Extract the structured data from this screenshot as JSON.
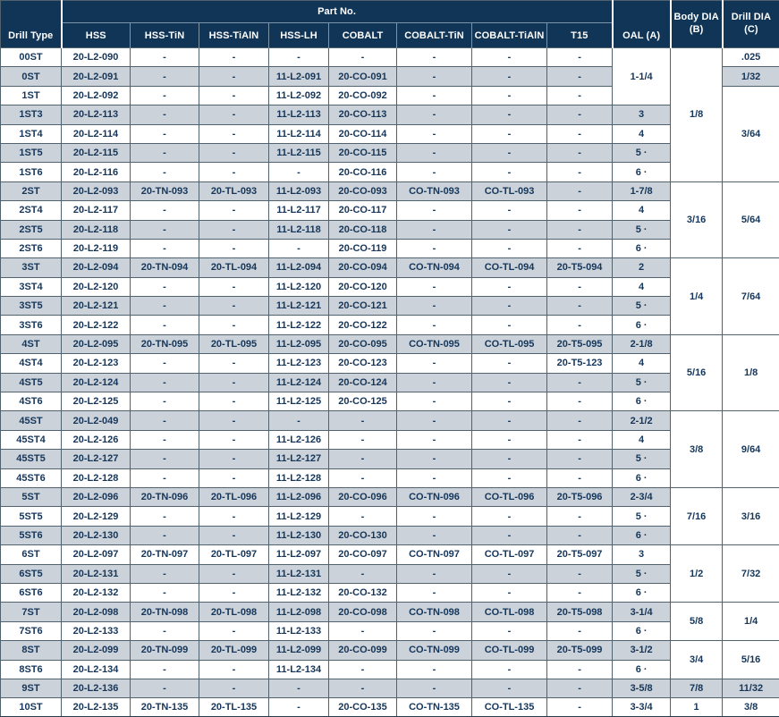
{
  "header": {
    "drill_type": "Drill Type",
    "part_no": "Part No.",
    "part_columns": [
      "HSS",
      "HSS-TiN",
      "HSS-TiAlN",
      "HSS-LH",
      "COBALT",
      "COBALT-TiN",
      "COBALT-TiAlN",
      "T15"
    ],
    "oal": "OAL (A)",
    "body_dia_line1": "Body DIA",
    "body_dia_line2": "(B)",
    "drill_dia_line1": "Drill DIA",
    "drill_dia_line2": "(C)"
  },
  "colors": {
    "header_bg": "#113557",
    "stripe_bg": "#cbd2d9",
    "text": "#15365a",
    "grid_line": "#51626f"
  },
  "rows": [
    {
      "type": "00ST",
      "parts": [
        "20-L2-090",
        "-",
        "-",
        "-",
        "-",
        "-",
        "-",
        "-"
      ],
      "oal": {
        "text": "1-1/4",
        "span": 3
      },
      "body": {
        "text": "1/8",
        "span": 7
      },
      "drill": {
        "text": ".025",
        "span": 1
      }
    },
    {
      "type": "0ST",
      "parts": [
        "20-L2-091",
        "-",
        "-",
        "11-L2-091",
        "20-CO-091",
        "-",
        "-",
        "-"
      ],
      "drill": {
        "text": "1/32",
        "span": 1
      }
    },
    {
      "type": "1ST",
      "parts": [
        "20-L2-092",
        "-",
        "-",
        "11-L2-092",
        "20-CO-092",
        "-",
        "-",
        "-"
      ],
      "drill": {
        "text": "3/64",
        "span": 5
      }
    },
    {
      "type": "1ST3",
      "parts": [
        "20-L2-113",
        "-",
        "-",
        "11-L2-113",
        "20-CO-113",
        "-",
        "-",
        "-"
      ],
      "oal": {
        "text": "3",
        "span": 1
      }
    },
    {
      "type": "1ST4",
      "parts": [
        "20-L2-114",
        "-",
        "-",
        "11-L2-114",
        "20-CO-114",
        "-",
        "-",
        "-"
      ],
      "oal": {
        "text": "4",
        "span": 1
      }
    },
    {
      "type": "1ST5",
      "parts": [
        "20-L2-115",
        "-",
        "-",
        "11-L2-115",
        "20-CO-115",
        "-",
        "-",
        "-"
      ],
      "oal": {
        "text": "5 ·",
        "span": 1
      }
    },
    {
      "type": "1ST6",
      "parts": [
        "20-L2-116",
        "-",
        "-",
        "-",
        "20-CO-116",
        "-",
        "-",
        "-"
      ],
      "oal": {
        "text": "6 ·",
        "span": 1
      }
    },
    {
      "type": "2ST",
      "parts": [
        "20-L2-093",
        "20-TN-093",
        "20-TL-093",
        "11-L2-093",
        "20-CO-093",
        "CO-TN-093",
        "CO-TL-093",
        "-"
      ],
      "oal": {
        "text": "1-7/8",
        "span": 1
      },
      "body": {
        "text": "3/16",
        "span": 4
      },
      "drill": {
        "text": "5/64",
        "span": 4
      }
    },
    {
      "type": "2ST4",
      "parts": [
        "20-L2-117",
        "-",
        "-",
        "11-L2-117",
        "20-CO-117",
        "-",
        "-",
        "-"
      ],
      "oal": {
        "text": "4",
        "span": 1
      }
    },
    {
      "type": "2ST5",
      "parts": [
        "20-L2-118",
        "-",
        "-",
        "11-L2-118",
        "20-CO-118",
        "-",
        "-",
        "-"
      ],
      "oal": {
        "text": "5 ·",
        "span": 1
      }
    },
    {
      "type": "2ST6",
      "parts": [
        "20-L2-119",
        "-",
        "-",
        "-",
        "20-CO-119",
        "-",
        "-",
        "-"
      ],
      "oal": {
        "text": "6 ·",
        "span": 1
      }
    },
    {
      "type": "3ST",
      "parts": [
        "20-L2-094",
        "20-TN-094",
        "20-TL-094",
        "11-L2-094",
        "20-CO-094",
        "CO-TN-094",
        "CO-TL-094",
        "20-T5-094"
      ],
      "oal": {
        "text": "2",
        "span": 1
      },
      "body": {
        "text": "1/4",
        "span": 4
      },
      "drill": {
        "text": "7/64",
        "span": 4
      }
    },
    {
      "type": "3ST4",
      "parts": [
        "20-L2-120",
        "-",
        "-",
        "11-L2-120",
        "20-CO-120",
        "-",
        "-",
        "-"
      ],
      "oal": {
        "text": "4",
        "span": 1
      }
    },
    {
      "type": "3ST5",
      "parts": [
        "20-L2-121",
        "-",
        "-",
        "11-L2-121",
        "20-CO-121",
        "-",
        "-",
        "-"
      ],
      "oal": {
        "text": "5 ·",
        "span": 1
      }
    },
    {
      "type": "3ST6",
      "parts": [
        "20-L2-122",
        "-",
        "-",
        "11-L2-122",
        "20-CO-122",
        "-",
        "-",
        "-"
      ],
      "oal": {
        "text": "6 ·",
        "span": 1
      }
    },
    {
      "type": "4ST",
      "parts": [
        "20-L2-095",
        "20-TN-095",
        "20-TL-095",
        "11-L2-095",
        "20-CO-095",
        "CO-TN-095",
        "CO-TL-095",
        "20-T5-095"
      ],
      "oal": {
        "text": "2-1/8",
        "span": 1
      },
      "body": {
        "text": "5/16",
        "span": 4
      },
      "drill": {
        "text": "1/8",
        "span": 4
      }
    },
    {
      "type": "4ST4",
      "parts": [
        "20-L2-123",
        "-",
        "-",
        "11-L2-123",
        "20-CO-123",
        "-",
        "-",
        "20-T5-123"
      ],
      "oal": {
        "text": "4",
        "span": 1
      }
    },
    {
      "type": "4ST5",
      "parts": [
        "20-L2-124",
        "-",
        "-",
        "11-L2-124",
        "20-CO-124",
        "-",
        "-",
        "-"
      ],
      "oal": {
        "text": "5 ·",
        "span": 1
      }
    },
    {
      "type": "4ST6",
      "parts": [
        "20-L2-125",
        "-",
        "-",
        "11-L2-125",
        "20-CO-125",
        "-",
        "-",
        "-"
      ],
      "oal": {
        "text": "6 ·",
        "span": 1
      }
    },
    {
      "type": "45ST",
      "parts": [
        "20-L2-049",
        "-",
        "-",
        "-",
        "-",
        "-",
        "-",
        "-"
      ],
      "oal": {
        "text": "2-1/2",
        "span": 1
      },
      "body": {
        "text": "3/8",
        "span": 4
      },
      "drill": {
        "text": "9/64",
        "span": 4
      }
    },
    {
      "type": "45ST4",
      "parts": [
        "20-L2-126",
        "-",
        "-",
        "11-L2-126",
        "-",
        "-",
        "-",
        "-"
      ],
      "oal": {
        "text": "4",
        "span": 1
      }
    },
    {
      "type": "45ST5",
      "parts": [
        "20-L2-127",
        "-",
        "-",
        "11-L2-127",
        "-",
        "-",
        "-",
        "-"
      ],
      "oal": {
        "text": "5 ·",
        "span": 1
      }
    },
    {
      "type": "45ST6",
      "parts": [
        "20-L2-128",
        "-",
        "-",
        "11-L2-128",
        "-",
        "-",
        "-",
        "-"
      ],
      "oal": {
        "text": "6 ·",
        "span": 1
      }
    },
    {
      "type": "5ST",
      "parts": [
        "20-L2-096",
        "20-TN-096",
        "20-TL-096",
        "11-L2-096",
        "20-CO-096",
        "CO-TN-096",
        "CO-TL-096",
        "20-T5-096"
      ],
      "oal": {
        "text": "2-3/4",
        "span": 1
      },
      "body": {
        "text": "7/16",
        "span": 3
      },
      "drill": {
        "text": "3/16",
        "span": 3
      }
    },
    {
      "type": "5ST5",
      "parts": [
        "20-L2-129",
        "-",
        "-",
        "11-L2-129",
        "-",
        "-",
        "-",
        "-"
      ],
      "oal": {
        "text": "5 ·",
        "span": 1
      }
    },
    {
      "type": "5ST6",
      "parts": [
        "20-L2-130",
        "-",
        "-",
        "11-L2-130",
        "20-CO-130",
        "-",
        "-",
        "-"
      ],
      "oal": {
        "text": "6 ·",
        "span": 1
      }
    },
    {
      "type": "6ST",
      "parts": [
        "20-L2-097",
        "20-TN-097",
        "20-TL-097",
        "11-L2-097",
        "20-CO-097",
        "CO-TN-097",
        "CO-TL-097",
        "20-T5-097"
      ],
      "oal": {
        "text": "3",
        "span": 1
      },
      "body": {
        "text": "1/2",
        "span": 3
      },
      "drill": {
        "text": "7/32",
        "span": 3
      }
    },
    {
      "type": "6ST5",
      "parts": [
        "20-L2-131",
        "-",
        "-",
        "11-L2-131",
        "-",
        "-",
        "-",
        "-"
      ],
      "oal": {
        "text": "5 ·",
        "span": 1
      }
    },
    {
      "type": "6ST6",
      "parts": [
        "20-L2-132",
        "-",
        "-",
        "11-L2-132",
        "20-CO-132",
        "-",
        "-",
        "-"
      ],
      "oal": {
        "text": "6 ·",
        "span": 1
      }
    },
    {
      "type": "7ST",
      "parts": [
        "20-L2-098",
        "20-TN-098",
        "20-TL-098",
        "11-L2-098",
        "20-CO-098",
        "CO-TN-098",
        "CO-TL-098",
        "20-T5-098"
      ],
      "oal": {
        "text": "3-1/4",
        "span": 1
      },
      "body": {
        "text": "5/8",
        "span": 2
      },
      "drill": {
        "text": "1/4",
        "span": 2
      }
    },
    {
      "type": "7ST6",
      "parts": [
        "20-L2-133",
        "-",
        "-",
        "11-L2-133",
        "-",
        "-",
        "-",
        "-"
      ],
      "oal": {
        "text": "6 ·",
        "span": 1
      }
    },
    {
      "type": "8ST",
      "parts": [
        "20-L2-099",
        "20-TN-099",
        "20-TL-099",
        "11-L2-099",
        "20-CO-099",
        "CO-TN-099",
        "CO-TL-099",
        "20-T5-099"
      ],
      "oal": {
        "text": "3-1/2",
        "span": 1
      },
      "body": {
        "text": "3/4",
        "span": 2
      },
      "drill": {
        "text": "5/16",
        "span": 2
      }
    },
    {
      "type": "8ST6",
      "parts": [
        "20-L2-134",
        "-",
        "-",
        "11-L2-134",
        "-",
        "-",
        "-",
        "-"
      ],
      "oal": {
        "text": "6 ·",
        "span": 1
      }
    },
    {
      "type": "9ST",
      "parts": [
        "20-L2-136",
        "-",
        "-",
        "-",
        "-",
        "-",
        "-",
        "-"
      ],
      "oal": {
        "text": "3-5/8",
        "span": 1
      },
      "body": {
        "text": "7/8",
        "span": 1
      },
      "drill": {
        "text": "11/32",
        "span": 1
      }
    },
    {
      "type": "10ST",
      "parts": [
        "20-L2-135",
        "20-TN-135",
        "20-TL-135",
        "-",
        "20-CO-135",
        "CO-TN-135",
        "CO-TL-135",
        "-"
      ],
      "oal": {
        "text": "3-3/4",
        "span": 1
      },
      "body": {
        "text": "1",
        "span": 1
      },
      "drill": {
        "text": "3/8",
        "span": 1
      }
    }
  ]
}
